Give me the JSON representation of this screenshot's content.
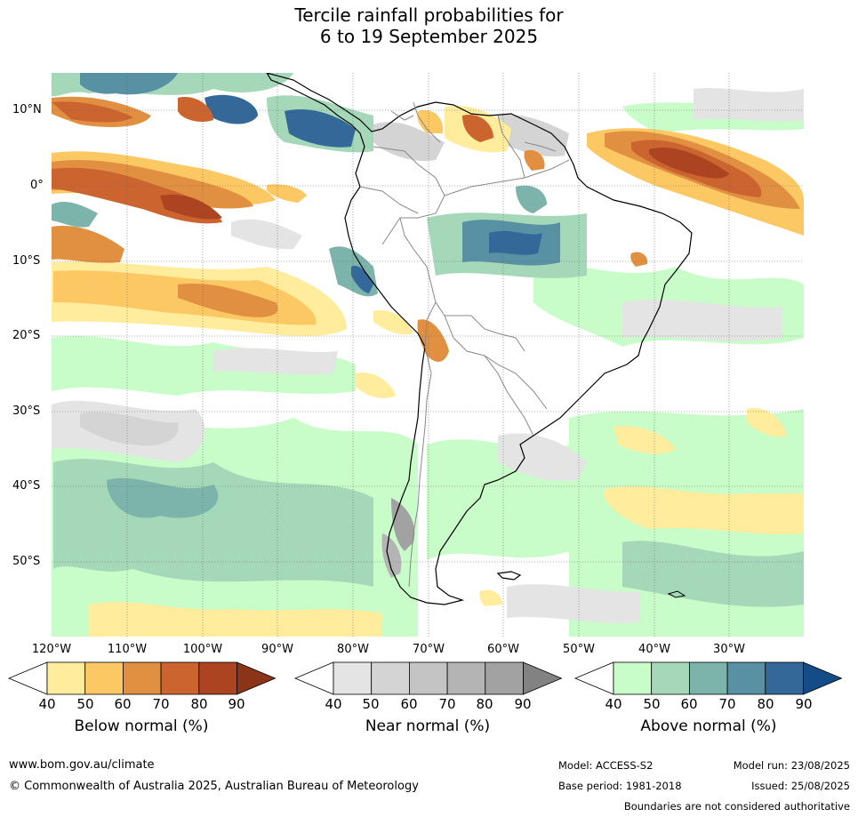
{
  "title_line1": "Tercile rainfall probabilities for",
  "title_line2": "6 to 19 September 2025",
  "map": {
    "lat_labels": [
      "10°N",
      "0°",
      "10°S",
      "20°S",
      "30°S",
      "40°S",
      "50°S"
    ],
    "lon_labels": [
      "120°W",
      "110°W",
      "100°W",
      "90°W",
      "80°W",
      "70°W",
      "60°W",
      "50°W",
      "40°W",
      "30°W"
    ]
  },
  "colorbars": [
    {
      "title": "Below normal (%)",
      "ticks": [
        "40",
        "50",
        "60",
        "70",
        "80",
        "90"
      ],
      "colors": [
        "#ffffff",
        "#ffec9c",
        "#fcc864",
        "#e09040",
        "#cc6430",
        "#ac4422",
        "#8c3418"
      ]
    },
    {
      "title": "Near normal (%)",
      "ticks": [
        "40",
        "50",
        "60",
        "70",
        "80",
        "90"
      ],
      "colors": [
        "#ffffff",
        "#e4e4e4",
        "#d4d4d4",
        "#c4c4c4",
        "#b4b4b4",
        "#a2a2a2",
        "#828282"
      ]
    },
    {
      "title": "Above normal (%)",
      "ticks": [
        "40",
        "50",
        "60",
        "70",
        "80",
        "90"
      ],
      "colors": [
        "#ffffff",
        "#c8fcc8",
        "#a4d8b8",
        "#7cb4ac",
        "#5890a4",
        "#346898",
        "#144c88"
      ]
    }
  ],
  "footer": {
    "website": "www.bom.gov.au/climate",
    "copyright": "© Commonwealth of Australia 2025, Australian Bureau of Meteorology",
    "model": "Model: ACCESS-S2",
    "base_period": "Base period: 1981-2018",
    "model_run": "Model run: 23/08/2025",
    "issued": "Issued: 25/08/2025",
    "boundaries_note": "Boundaries are not considered authoritative"
  }
}
